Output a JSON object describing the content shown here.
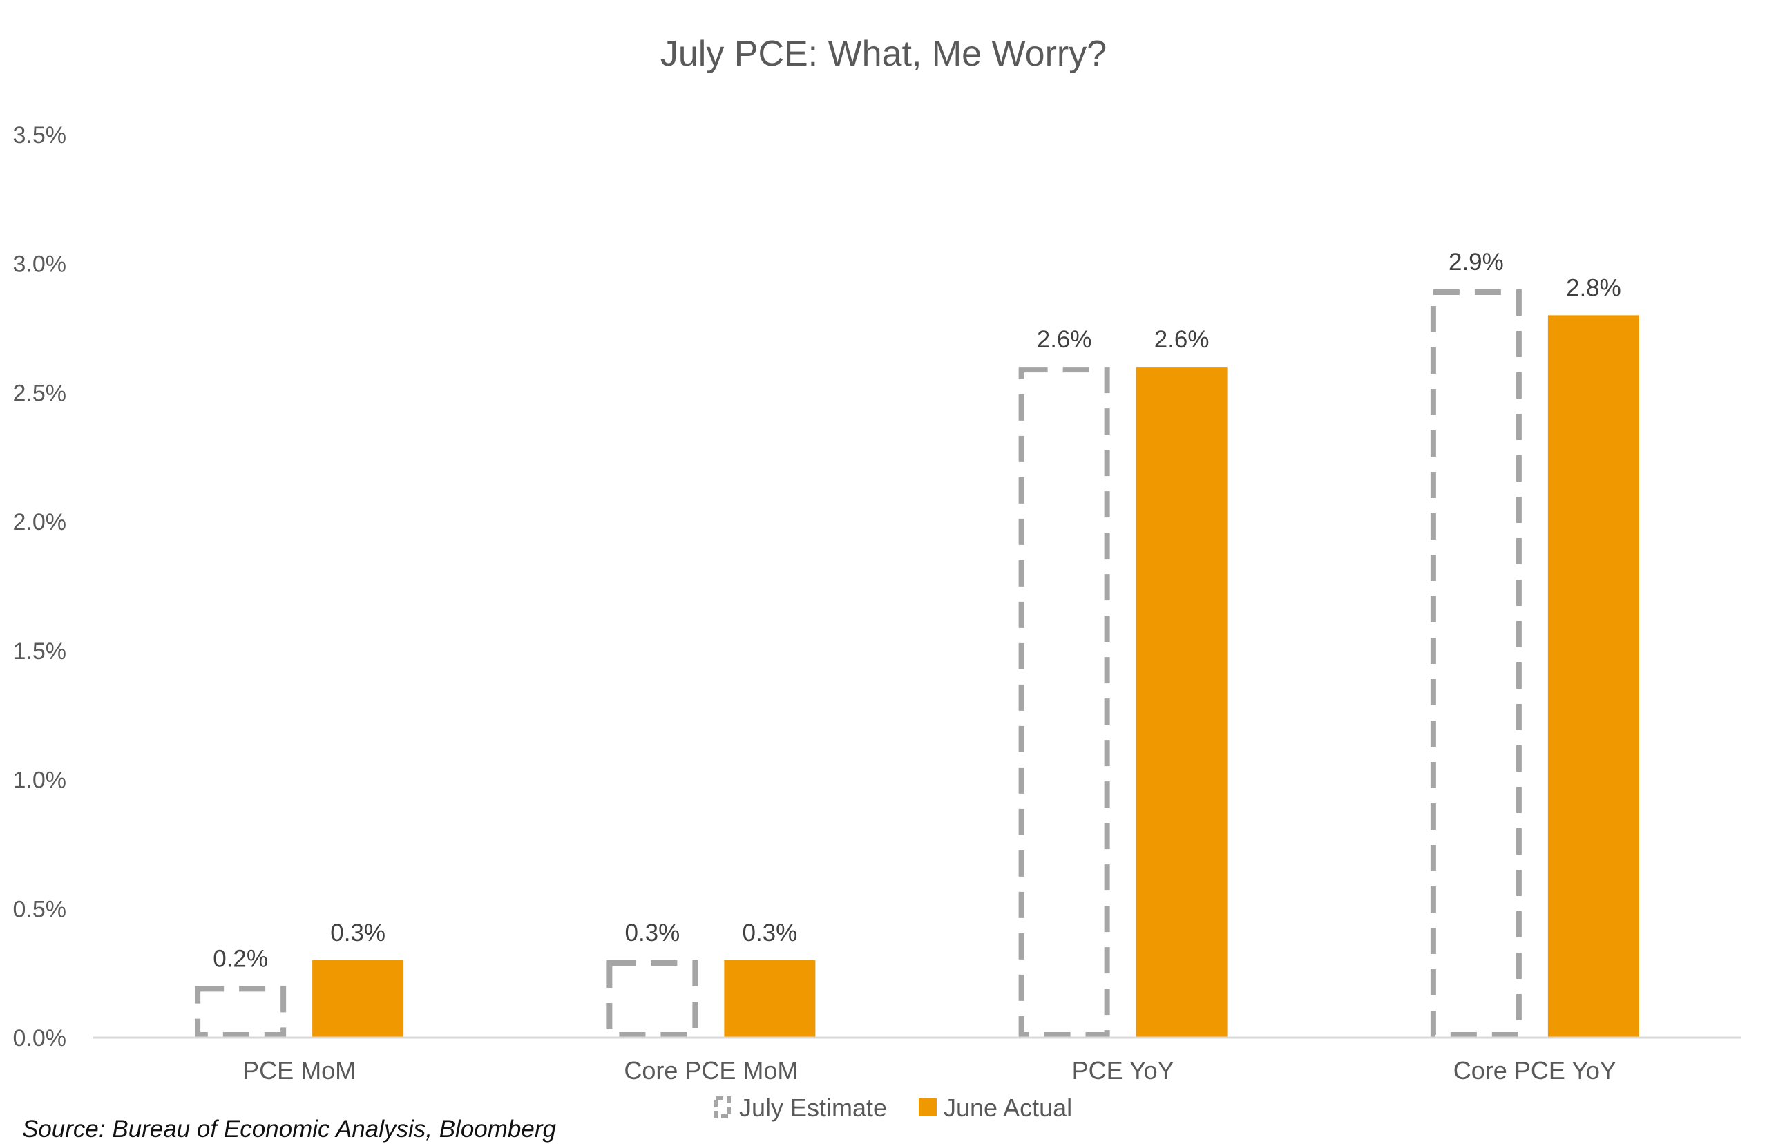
{
  "chart_data": {
    "type": "bar",
    "title": "July PCE: What, Me Worry?",
    "categories": [
      "PCE MoM",
      "Core PCE MoM",
      "PCE YoY",
      "Core PCE YoY"
    ],
    "series": [
      {
        "name": "July Estimate",
        "values": [
          0.2,
          0.3,
          2.6,
          2.9
        ],
        "labels": [
          "0.2%",
          "0.3%",
          "2.6%",
          "2.9%"
        ],
        "style": "dashed-outline",
        "color": "#A5A5A5"
      },
      {
        "name": "June Actual",
        "values": [
          0.3,
          0.3,
          2.6,
          2.8
        ],
        "labels": [
          "0.3%",
          "0.3%",
          "2.6%",
          "2.8%"
        ],
        "style": "solid",
        "color": "#F09800"
      }
    ],
    "ylim": [
      0,
      3.5
    ],
    "yticks": [
      0,
      0.5,
      1.0,
      1.5,
      2.0,
      2.5,
      3.0,
      3.5
    ],
    "ytick_labels": [
      "0.0%",
      "0.5%",
      "1.0%",
      "1.5%",
      "2.0%",
      "2.5%",
      "3.0%",
      "3.5%"
    ],
    "grid": false,
    "legend_position": "bottom",
    "source": "Source: Bureau of Economic Analysis, Bloomberg"
  }
}
